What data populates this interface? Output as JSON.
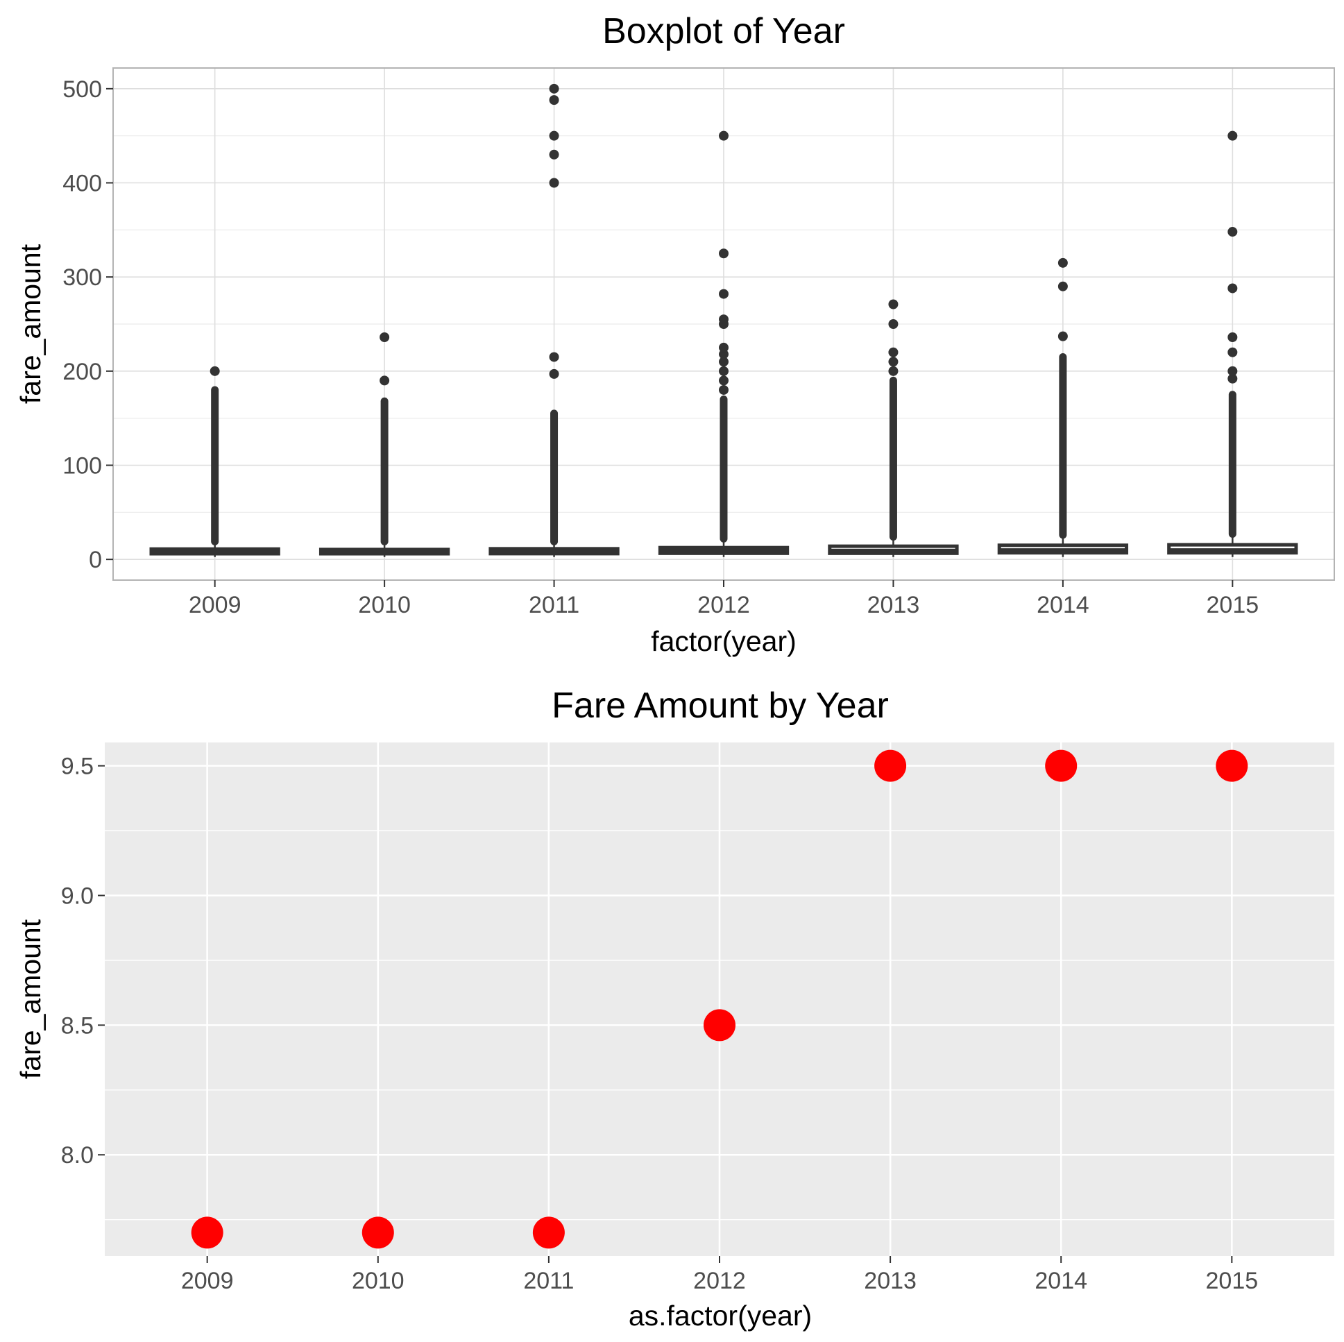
{
  "chart_data": [
    {
      "type": "box",
      "title": "Boxplot of Year",
      "xlabel": "factor(year)",
      "ylabel": "fare_amount",
      "ylim": [
        -22,
        522
      ],
      "yticks": [
        0,
        100,
        200,
        300,
        400,
        500
      ],
      "categories": [
        "2009",
        "2010",
        "2011",
        "2012",
        "2013",
        "2014",
        "2015"
      ],
      "boxes": [
        {
          "category": "2009",
          "min": 2.5,
          "q1": 6.0,
          "median": 8.5,
          "q3": 11.0,
          "max": 18.5,
          "outlier_range": [
            19,
            180
          ],
          "outliers": [
            200
          ]
        },
        {
          "category": "2010",
          "min": 2.5,
          "q1": 6.0,
          "median": 8.5,
          "q3": 10.5,
          "max": 18.0,
          "outlier_range": [
            19,
            168
          ],
          "outliers": [
            190,
            236
          ]
        },
        {
          "category": "2011",
          "min": 2.5,
          "q1": 6.1,
          "median": 8.5,
          "q3": 11.3,
          "max": 19.0,
          "outlier_range": [
            19,
            155
          ],
          "outliers": [
            197,
            215,
            400,
            430,
            450,
            488,
            500
          ]
        },
        {
          "category": "2012",
          "min": 2.5,
          "q1": 6.5,
          "median": 9.0,
          "q3": 12.5,
          "max": 21.5,
          "outlier_range": [
            22,
            170
          ],
          "outliers": [
            180,
            190,
            200,
            210,
            218,
            225,
            250,
            255,
            282,
            325,
            450
          ]
        },
        {
          "category": "2013",
          "min": 2.5,
          "q1": 6.5,
          "median": 9.5,
          "q3": 14.0,
          "max": 24.0,
          "outlier_range": [
            24,
            190
          ],
          "outliers": [
            200,
            210,
            220,
            250,
            271
          ]
        },
        {
          "category": "2014",
          "min": 2.5,
          "q1": 7.0,
          "median": 10.0,
          "q3": 15.0,
          "max": 26.0,
          "outlier_range": [
            26,
            215
          ],
          "outliers": [
            237,
            290,
            315
          ]
        },
        {
          "category": "2015",
          "min": 2.5,
          "q1": 7.0,
          "median": 10.0,
          "q3": 15.5,
          "max": 27.0,
          "outlier_range": [
            27,
            175
          ],
          "outliers": [
            192,
            200,
            220,
            236,
            288,
            348,
            450
          ]
        }
      ]
    },
    {
      "type": "scatter",
      "title": "Fare Amount by Year",
      "xlabel": "as.factor(year)",
      "ylabel": "fare_amount",
      "ylim": [
        7.61,
        9.59
      ],
      "yticks": [
        "8.0",
        "8.5",
        "9.0",
        "9.5"
      ],
      "categories": [
        "2009",
        "2010",
        "2011",
        "2012",
        "2013",
        "2014",
        "2015"
      ],
      "values": [
        7.7,
        7.7,
        7.7,
        8.5,
        9.5,
        9.5,
        9.5
      ],
      "point_color": "#ff0000"
    }
  ]
}
